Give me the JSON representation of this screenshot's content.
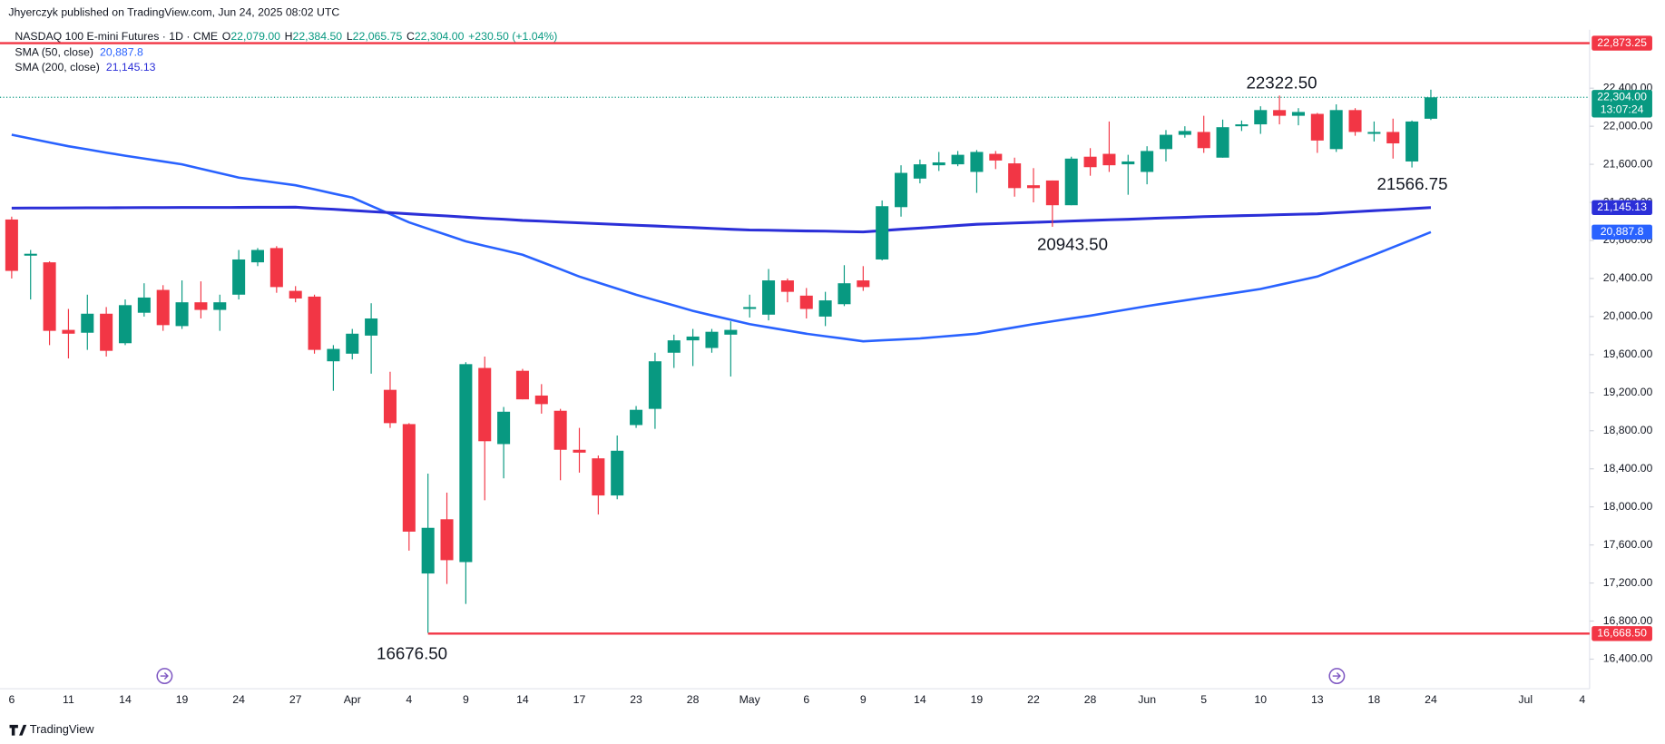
{
  "header": {
    "published": "Jhyerczyk published on TradingView.com, Jun 24, 2025 08:02 UTC",
    "brand": "TradingView"
  },
  "chart_data": {
    "type": "candlestick",
    "title": "NASDAQ 100 E-mini Futures · 1D · CME",
    "ohlc_labels": [
      "O",
      "H",
      "L",
      "C"
    ],
    "ohlc_values": [
      "22,079.00",
      "22,384.50",
      "22,065.75",
      "22,304.00"
    ],
    "change": "+230.50 (+1.04%)",
    "up_color": "#089981",
    "down_color": "#f23645",
    "categories": [
      "6",
      null,
      null,
      "11",
      null,
      null,
      "14",
      null,
      null,
      "19",
      null,
      null,
      "24",
      null,
      null,
      "27",
      null,
      null,
      "Apr",
      null,
      null,
      "4",
      null,
      null,
      "9",
      null,
      null,
      "14",
      null,
      null,
      "17",
      null,
      null,
      "23",
      null,
      null,
      "28",
      null,
      null,
      "May",
      null,
      null,
      "6",
      null,
      null,
      "9",
      null,
      null,
      "14",
      null,
      null,
      "19",
      null,
      null,
      "22",
      null,
      null,
      "28",
      null,
      null,
      "Jun",
      null,
      null,
      "5",
      null,
      null,
      "10",
      null,
      null,
      "13",
      null,
      null,
      "18",
      null,
      null,
      "24",
      null,
      null,
      null,
      null,
      "Jul",
      null,
      null,
      "4"
    ],
    "open": [
      21020,
      20640,
      20570,
      19860,
      19830,
      20030,
      19720,
      20040,
      20280,
      19900,
      20150,
      20070,
      20230,
      20570,
      20720,
      20270,
      20210,
      19530,
      19610,
      19800,
      19230,
      18870,
      17300,
      17870,
      17420,
      19460,
      18660,
      19430,
      19170,
      19010,
      18600,
      18510,
      18120,
      18860,
      19030,
      19620,
      19750,
      19670,
      19810,
      20080,
      20020,
      20380,
      20220,
      20000,
      20130,
      20380,
      20600,
      21150,
      21450,
      21590,
      21600,
      21520,
      21710,
      21610,
      21380,
      21430,
      21170,
      21680,
      21710,
      21600,
      21520,
      21760,
      21910,
      21940,
      21670,
      22000,
      22020,
      22170,
      22110,
      22130,
      21760,
      22170,
      21920,
      21940,
      21630,
      22079,
      null,
      null,
      null,
      null,
      null,
      null,
      null,
      null
    ],
    "high": [
      21050,
      20700,
      20580,
      20080,
      20230,
      20100,
      20180,
      20350,
      20330,
      20380,
      20370,
      20230,
      20700,
      20720,
      20740,
      20320,
      20230,
      19700,
      19870,
      20140,
      19420,
      18880,
      18350,
      18150,
      19520,
      19580,
      19050,
      19450,
      19290,
      19030,
      18830,
      18540,
      18750,
      19060,
      19620,
      19810,
      19870,
      19870,
      19950,
      20230,
      20500,
      20400,
      20300,
      20260,
      20540,
      20530,
      21220,
      21590,
      21650,
      21730,
      21740,
      21750,
      21740,
      21670,
      21560,
      21430,
      21680,
      21770,
      22050,
      21700,
      21790,
      21960,
      22000,
      22110,
      22070,
      22060,
      22210,
      22322.5,
      22190,
      22140,
      22230,
      22190,
      22050,
      22080,
      22060,
      22384.5,
      null,
      null,
      null,
      null,
      null,
      null,
      null,
      null
    ],
    "low": [
      20400,
      20180,
      19700,
      19560,
      19650,
      19580,
      19700,
      20000,
      19850,
      19870,
      19980,
      19850,
      20180,
      20530,
      20250,
      20150,
      19610,
      19220,
      19550,
      19400,
      18830,
      17540,
      16676.5,
      17190,
      16980,
      18070,
      18300,
      19130,
      18980,
      18280,
      18360,
      17920,
      18080,
      18830,
      18820,
      19460,
      19480,
      19620,
      19370,
      19990,
      19960,
      20150,
      19980,
      19900,
      20110,
      20270,
      20590,
      21050,
      21400,
      21530,
      21580,
      21300,
      21550,
      21260,
      21200,
      20943.5,
      21170,
      21480,
      21520,
      21280,
      21390,
      21630,
      21880,
      21720,
      21670,
      21950,
      21920,
      22020,
      22010,
      21720,
      21730,
      21900,
      21840,
      21660,
      21566.75,
      22065.75,
      null,
      null,
      null,
      null,
      null,
      null,
      null,
      null
    ],
    "close": [
      20480,
      20660,
      19850,
      19820,
      20030,
      19640,
      20120,
      20200,
      19910,
      20150,
      20070,
      20150,
      20600,
      20700,
      20310,
      20190,
      19650,
      19660,
      19820,
      19980,
      18880,
      17740,
      17780,
      17440,
      19500,
      18690,
      19000,
      19130,
      19080,
      18600,
      18570,
      18120,
      18590,
      19020,
      19530,
      19750,
      19790,
      19840,
      19860,
      20100,
      20380,
      20260,
      20080,
      20170,
      20350,
      20310,
      21160,
      21510,
      21600,
      21620,
      21700,
      21730,
      21640,
      21350,
      21350,
      21170,
      21660,
      21570,
      21590,
      21630,
      21740,
      21910,
      21950,
      21770,
      21990,
      22020,
      22170,
      22110,
      22150,
      21850,
      22170,
      21940,
      21940,
      21820,
      22050,
      22304,
      null,
      null,
      null,
      null,
      null,
      null,
      null,
      null
    ],
    "series": [
      {
        "name": "SMA (50, close)",
        "color": "#2962ff",
        "last_label": "20,887.8",
        "values": [
          21910,
          21870,
          21830,
          21790,
          21757,
          21723,
          21690,
          21660,
          21630,
          21600,
          21553,
          21507,
          21460,
          21433,
          21407,
          21380,
          21337,
          21293,
          21250,
          21163,
          21077,
          20990,
          20923,
          20857,
          20790,
          20743,
          20697,
          20650,
          20573,
          20497,
          20420,
          20357,
          20293,
          20230,
          20173,
          20117,
          20060,
          20013,
          19967,
          19920,
          19887,
          19853,
          19820,
          19793,
          19767,
          19740,
          19750,
          19760,
          19770,
          19787,
          19803,
          19820,
          19853,
          19887,
          19920,
          19950,
          19980,
          20010,
          20043,
          20077,
          20110,
          20140,
          20170,
          20200,
          20230,
          20260,
          20290,
          20333,
          20377,
          20420,
          20497,
          20573,
          20650,
          20729,
          20808,
          20887.8,
          null,
          null,
          null,
          null,
          null,
          null,
          null,
          null
        ]
      },
      {
        "name": "SMA (200, close)",
        "color": "#2b2fd8",
        "last_label": "21,145.13",
        "values": [
          21140,
          21141,
          21141,
          21142,
          21143,
          21143,
          21144,
          21145,
          21145,
          21146,
          21147,
          21147,
          21148,
          21149,
          21149,
          21150,
          21138,
          21127,
          21115,
          21103,
          21092,
          21080,
          21068,
          21057,
          21045,
          21033,
          21022,
          21010,
          21002,
          20993,
          20985,
          20977,
          20968,
          20960,
          20952,
          20943,
          20935,
          20927,
          20918,
          20910,
          20907,
          20903,
          20900,
          20897,
          20893,
          20890,
          20903,
          20917,
          20930,
          20943,
          20957,
          20970,
          20977,
          20983,
          20990,
          20997,
          21003,
          21010,
          21017,
          21023,
          21030,
          21037,
          21043,
          21050,
          21055,
          21060,
          21065,
          21070,
          21075,
          21080,
          21091,
          21102,
          21113,
          21123,
          21134,
          21145.13,
          null,
          null,
          null,
          null,
          null,
          null,
          null,
          null
        ]
      }
    ],
    "hlines": [
      {
        "value": 22873.25,
        "label": "22,873.25",
        "color": "#f23645"
      },
      {
        "value": 16668.5,
        "label": "16,668.50",
        "color": "#f23645"
      }
    ],
    "last_price": {
      "value": 22304,
      "label": "22,304.00",
      "countdown": "13:07:24"
    },
    "annotations": [
      "22322.50",
      "21566.75",
      "20943.50",
      "16676.50"
    ],
    "ylim": [
      16089,
      23014
    ],
    "yticks": [
      {
        "value": 16400,
        "label": "16,400.00"
      },
      {
        "value": 16800,
        "label": "16,800.00"
      },
      {
        "value": 17200,
        "label": "17,200.00"
      },
      {
        "value": 17600,
        "label": "17,600.00"
      },
      {
        "value": 18000,
        "label": "18,000.00"
      },
      {
        "value": 18400,
        "label": "18,400.00"
      },
      {
        "value": 18800,
        "label": "18,800.00"
      },
      {
        "value": 19200,
        "label": "19,200.00"
      },
      {
        "value": 19600,
        "label": "19,600.00"
      },
      {
        "value": 20000,
        "label": "20,000.00"
      },
      {
        "value": 20400,
        "label": "20,400.00"
      },
      {
        "value": 20800,
        "label": "20,800.00"
      },
      {
        "value": 21200,
        "label": "21,200.00"
      },
      {
        "value": 21600,
        "label": "21,600.00"
      },
      {
        "value": 22000,
        "label": "22,000.00"
      },
      {
        "value": 22400,
        "label": "22,400.00"
      }
    ],
    "grid": false
  }
}
